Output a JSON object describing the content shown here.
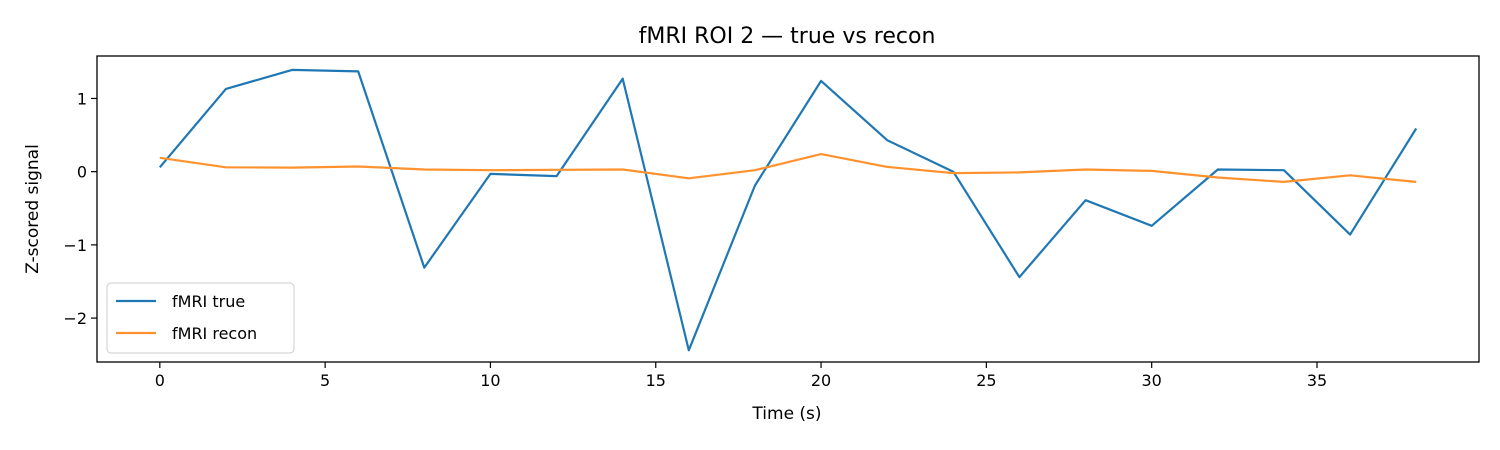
{
  "chart_data": {
    "type": "line",
    "title": "fMRI ROI 2 — true vs recon",
    "xlabel": "Time (s)",
    "ylabel": "Z-scored signal",
    "xlim": [
      -1.9,
      39.9
    ],
    "ylim": [
      -2.6,
      1.58
    ],
    "xticks": [
      0,
      5,
      10,
      15,
      20,
      25,
      30,
      35
    ],
    "yticks": [
      -2,
      -1,
      0,
      1
    ],
    "ytick_labels": [
      "−2",
      "−1",
      "0",
      "1"
    ],
    "grid": false,
    "legend_position": "lower-left",
    "x": [
      0,
      2,
      4,
      6,
      8,
      10,
      12,
      14,
      16,
      18,
      20,
      22,
      24,
      26,
      28,
      30,
      32,
      34,
      36,
      38
    ],
    "series": [
      {
        "name": "fMRI true",
        "color": "#1f77b4",
        "values": [
          0.06,
          1.13,
          1.39,
          1.37,
          -1.31,
          -0.03,
          -0.06,
          1.27,
          -2.44,
          -0.19,
          1.24,
          0.43,
          0.0,
          -1.44,
          -0.39,
          -0.74,
          0.03,
          0.02,
          -0.86,
          0.59
        ]
      },
      {
        "name": "fMRI recon",
        "color": "#ff922e",
        "values": [
          0.19,
          0.06,
          0.055,
          0.07,
          0.03,
          0.02,
          0.025,
          0.03,
          -0.09,
          0.02,
          0.24,
          0.065,
          -0.02,
          -0.01,
          0.03,
          0.01,
          -0.08,
          -0.14,
          -0.05,
          -0.14
        ]
      }
    ]
  }
}
